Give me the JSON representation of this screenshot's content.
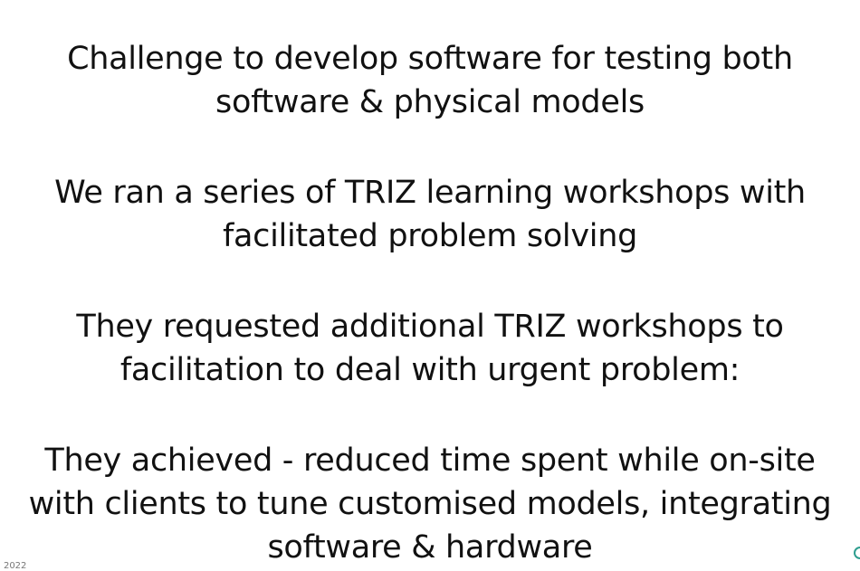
{
  "slide": {
    "paragraphs": [
      {
        "lines": [
          "Challenge to develop software for testing both",
          "software & physical models"
        ]
      },
      {
        "lines": [
          "We ran a series of TRIZ learning workshops with",
          "facilitated problem solving"
        ]
      },
      {
        "lines": [
          "They requested additional TRIZ workshops to",
          "facilitation to deal with urgent problem:"
        ]
      },
      {
        "lines": [
          "They achieved - reduced time spent while on-site",
          "with clients to tune customised models, integrating",
          "software & hardware"
        ]
      }
    ],
    "footer_text": "l 2022",
    "accent_color": "#2e9e8f"
  }
}
